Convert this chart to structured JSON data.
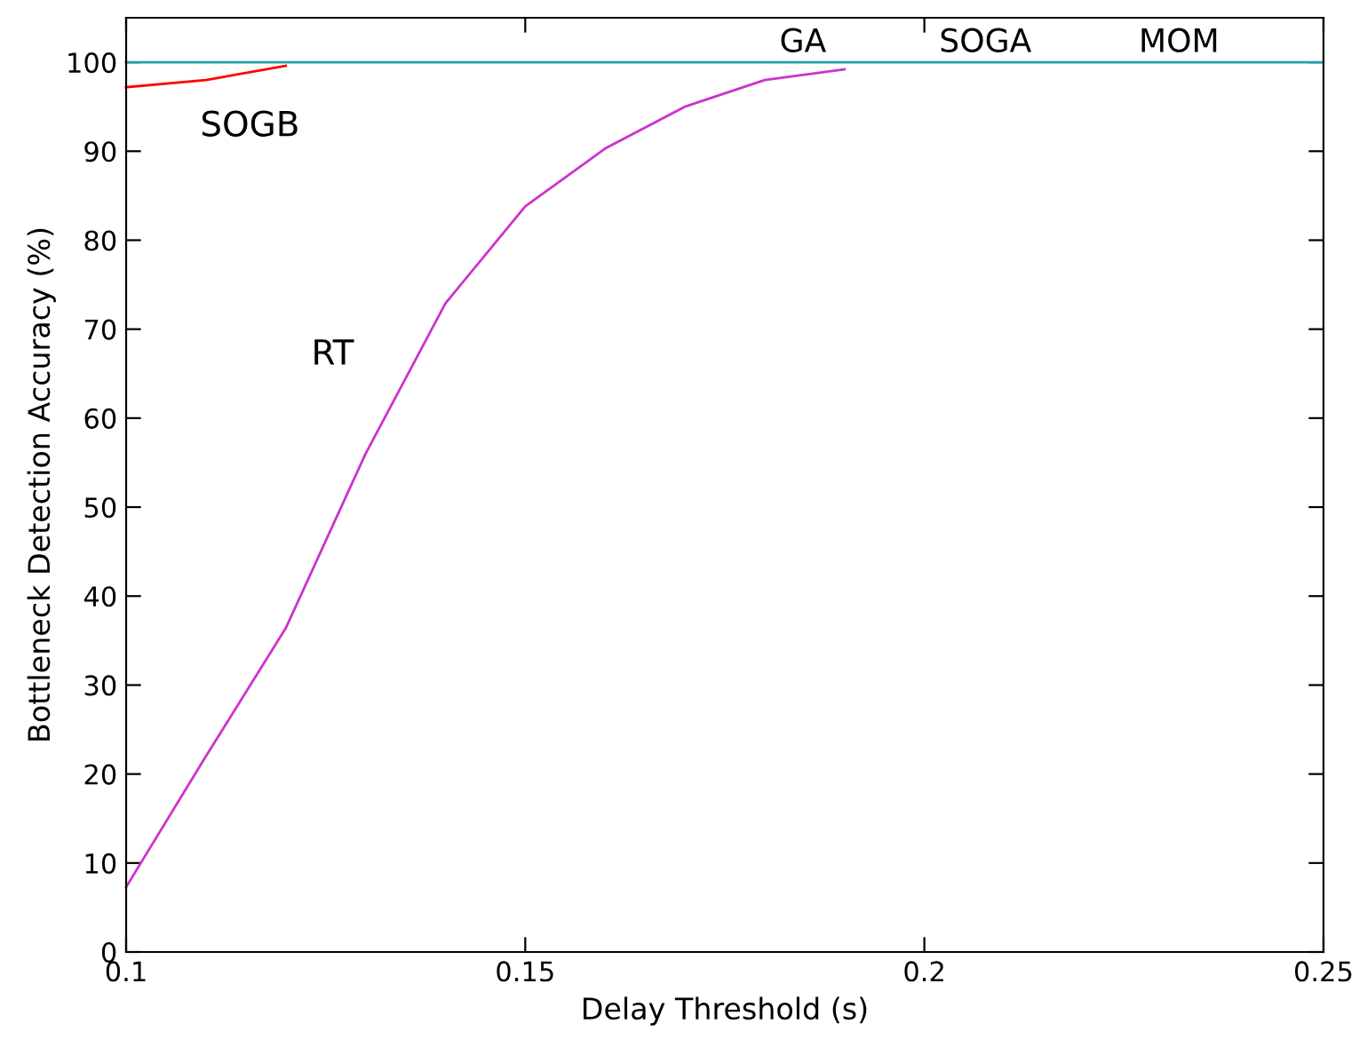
{
  "chart_data": {
    "type": "line",
    "xlabel": "Delay Threshold (s)",
    "ylabel": "Bottleneck Detection Accuracy (%)",
    "x": [
      0.1,
      0.11,
      0.12,
      0.13,
      0.14,
      0.15,
      0.16,
      0.17,
      0.18,
      0.19,
      0.2,
      0.21,
      0.22,
      0.23,
      0.24,
      0.25
    ],
    "series": [
      {
        "name": "SOGB",
        "color": "#ff0000",
        "values": [
          97.2,
          98,
          99.6,
          null,
          null,
          null,
          null,
          null,
          null,
          null,
          null,
          null,
          null,
          null,
          null,
          null
        ]
      },
      {
        "name": "RT",
        "color": "#cc33cc",
        "values": [
          7.3,
          22,
          36.4,
          56,
          72.9,
          83.8,
          90.3,
          95,
          98,
          99.2,
          null,
          null,
          null,
          null,
          null,
          null
        ]
      },
      {
        "color": "#20a0b0",
        "values": [
          100,
          100,
          100,
          100,
          100,
          100,
          100,
          100,
          100,
          100,
          100,
          100,
          100,
          100,
          100,
          100
        ]
      }
    ],
    "annotations": [
      {
        "text": "GA",
        "x": 0.18,
        "y": 100
      },
      {
        "text": "SOGA",
        "x": 0.2,
        "y": 100
      },
      {
        "text": "MOM",
        "x": 0.225,
        "y": 100
      }
    ],
    "xlim": [
      0.1,
      0.25
    ],
    "ylim": [
      0,
      105
    ],
    "xticks": [
      0.1,
      0.15,
      0.2,
      0.25
    ],
    "yticks": [
      0,
      10,
      20,
      30,
      40,
      50,
      60,
      70,
      80,
      90,
      100
    ],
    "grid": false,
    "legend": false
  }
}
